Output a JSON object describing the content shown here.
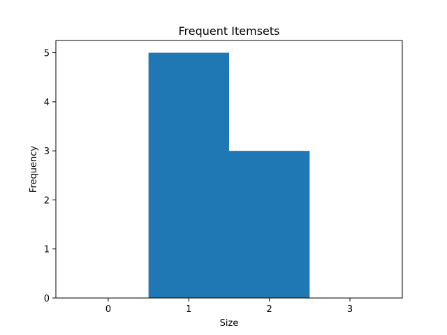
{
  "chart_data": {
    "type": "bar",
    "title": "Frequent Itemsets",
    "xlabel": "Size",
    "ylabel": "Frequency",
    "categories": [
      "1",
      "2"
    ],
    "x": [
      1,
      2
    ],
    "values": [
      5,
      3
    ],
    "bar_color": "#1f77b4",
    "bar_width": 1.0,
    "xlim": [
      -0.65,
      3.65
    ],
    "ylim": [
      0,
      5.25
    ],
    "xticks": [
      0,
      1,
      2,
      3
    ],
    "yticks": [
      0,
      1,
      2,
      3,
      4,
      5
    ],
    "grid": false,
    "legend": false
  }
}
